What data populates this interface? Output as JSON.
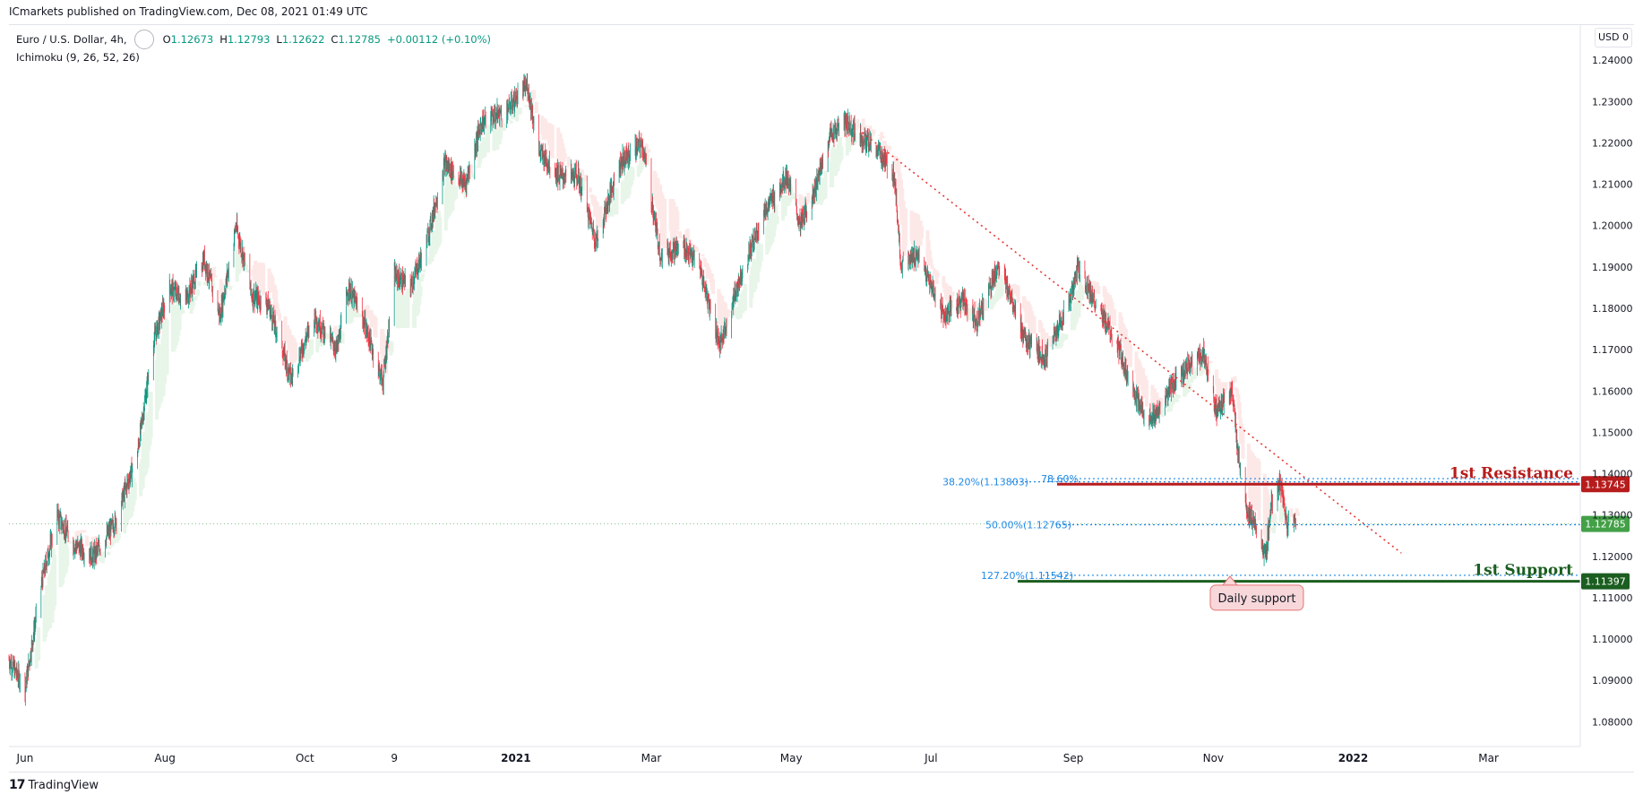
{
  "header": {
    "publisher_line": "ICmarkets published on TradingView.com, Dec 08, 2021 01:49 UTC"
  },
  "legend": {
    "symbol": "Euro / U.S. Dollar, 4h,",
    "open_label": "O",
    "open": "1.12673",
    "high_label": "H",
    "high": "1.12793",
    "low_label": "L",
    "low": "1.12622",
    "close_label": "C",
    "close": "1.12785",
    "change": "+0.00112 (+0.10%)",
    "indicator": "Ichimoku (9, 26, 52, 26)"
  },
  "toolbar": {
    "currency": "USD 0"
  },
  "footer": {
    "logo": "17",
    "brand": "TradingView"
  },
  "colors": {
    "up": "#089981",
    "down": "#f23645",
    "resistance": "#b71c1c",
    "support": "#1b5e20",
    "fib": "#1e88e5",
    "trendline": "#e53935",
    "last_price": "#43a047",
    "cloud_bull": "#e8f5e9",
    "cloud_bear": "#fde8e8"
  },
  "chart_data": {
    "type": "candlestick",
    "symbol": "Euro / U.S. Dollar",
    "timeframe": "4h",
    "x_ticks": [
      "Jun",
      "Aug",
      "Oct",
      "9",
      "2021",
      "Mar",
      "May",
      "Jul",
      "Sep",
      "Nov",
      "2022",
      "Mar"
    ],
    "y_ticks": [
      "1.24000",
      "1.23000",
      "1.22000",
      "1.21000",
      "1.20000",
      "1.19000",
      "1.18000",
      "1.17000",
      "1.16000",
      "1.15000",
      "1.14000",
      "1.13000",
      "1.12000",
      "1.11000",
      "1.10000",
      "1.09000",
      "1.08000"
    ],
    "ylim": [
      1.074,
      1.2485
    ],
    "date_range": [
      "2020-05-25",
      "2022-04-10"
    ],
    "price_path": [
      [
        "2020-05-25",
        1.095
      ],
      [
        "2020-06-01",
        1.088
      ],
      [
        "2020-06-08",
        1.113
      ],
      [
        "2020-06-15",
        1.13
      ],
      [
        "2020-06-22",
        1.123
      ],
      [
        "2020-07-01",
        1.12
      ],
      [
        "2020-07-10",
        1.128
      ],
      [
        "2020-07-20",
        1.145
      ],
      [
        "2020-07-27",
        1.172
      ],
      [
        "2020-08-03",
        1.185
      ],
      [
        "2020-08-10",
        1.182
      ],
      [
        "2020-08-18",
        1.192
      ],
      [
        "2020-08-25",
        1.178
      ],
      [
        "2020-09-01",
        1.2
      ],
      [
        "2020-09-08",
        1.183
      ],
      [
        "2020-09-15",
        1.181
      ],
      [
        "2020-09-25",
        1.163
      ],
      [
        "2020-10-05",
        1.178
      ],
      [
        "2020-10-15",
        1.17
      ],
      [
        "2020-10-20",
        1.185
      ],
      [
        "2020-10-26",
        1.178
      ],
      [
        "2020-11-04",
        1.162
      ],
      [
        "2020-11-09",
        1.188
      ],
      [
        "2020-11-16",
        1.185
      ],
      [
        "2020-11-23",
        1.196
      ],
      [
        "2020-12-01",
        1.215
      ],
      [
        "2020-12-10",
        1.21
      ],
      [
        "2020-12-17",
        1.225
      ],
      [
        "2020-12-28",
        1.228
      ],
      [
        "2021-01-06",
        1.234
      ],
      [
        "2021-01-11",
        1.218
      ],
      [
        "2021-01-20",
        1.212
      ],
      [
        "2021-01-28",
        1.212
      ],
      [
        "2021-02-05",
        1.196
      ],
      [
        "2021-02-15",
        1.215
      ],
      [
        "2021-02-25",
        1.22
      ],
      [
        "2021-03-05",
        1.193
      ],
      [
        "2021-03-15",
        1.195
      ],
      [
        "2021-03-22",
        1.19
      ],
      [
        "2021-03-31",
        1.171
      ],
      [
        "2021-04-09",
        1.188
      ],
      [
        "2021-04-19",
        1.203
      ],
      [
        "2021-04-29",
        1.212
      ],
      [
        "2021-05-05",
        1.2
      ],
      [
        "2021-05-12",
        1.21
      ],
      [
        "2021-05-18",
        1.222
      ],
      [
        "2021-05-25",
        1.225
      ],
      [
        "2021-06-01",
        1.221
      ],
      [
        "2021-06-08",
        1.218
      ],
      [
        "2021-06-15",
        1.212
      ],
      [
        "2021-06-18",
        1.19
      ],
      [
        "2021-06-25",
        1.193
      ],
      [
        "2021-07-07",
        1.178
      ],
      [
        "2021-07-15",
        1.182
      ],
      [
        "2021-07-21",
        1.177
      ],
      [
        "2021-07-30",
        1.19
      ],
      [
        "2021-08-05",
        1.183
      ],
      [
        "2021-08-11",
        1.172
      ],
      [
        "2021-08-20",
        1.168
      ],
      [
        "2021-08-31",
        1.183
      ],
      [
        "2021-09-03",
        1.19
      ],
      [
        "2021-09-10",
        1.182
      ],
      [
        "2021-09-20",
        1.171
      ],
      [
        "2021-09-30",
        1.156
      ],
      [
        "2021-10-06",
        1.153
      ],
      [
        "2021-10-15",
        1.162
      ],
      [
        "2021-10-21",
        1.166
      ],
      [
        "2021-10-28",
        1.169
      ],
      [
        "2021-11-02",
        1.155
      ],
      [
        "2021-11-09",
        1.16
      ],
      [
        "2021-11-12",
        1.144
      ],
      [
        "2021-11-16",
        1.131
      ],
      [
        "2021-11-24",
        1.12
      ],
      [
        "2021-11-26",
        1.132
      ],
      [
        "2021-11-30",
        1.138
      ],
      [
        "2021-12-03",
        1.128
      ],
      [
        "2021-12-07",
        1.12785
      ]
    ],
    "last_price": 1.12785,
    "horizontal_levels": [
      {
        "label": "1st Resistance",
        "price": 1.13745,
        "price_label": "1.13745"
      },
      {
        "label": "1st Support",
        "price": 1.11397,
        "price_label": "1.11397"
      }
    ],
    "fib_levels": [
      {
        "label": "38.20%(1.13803)",
        "price": 1.13803
      },
      {
        "label": "50.00%(1.12765)",
        "price": 1.12765
      },
      {
        "label": "127.20%(1.11542)",
        "price": 1.11542
      },
      {
        "label": "78.60%",
        "price": 1.1388
      }
    ],
    "trendline": {
      "start": [
        "2021-06-01",
        1.2225
      ],
      "end": [
        "2022-01-22",
        1.1208
      ]
    },
    "annotations": [
      {
        "text": "Daily support",
        "date": "2021-11-20",
        "price": 1.11
      }
    ]
  }
}
